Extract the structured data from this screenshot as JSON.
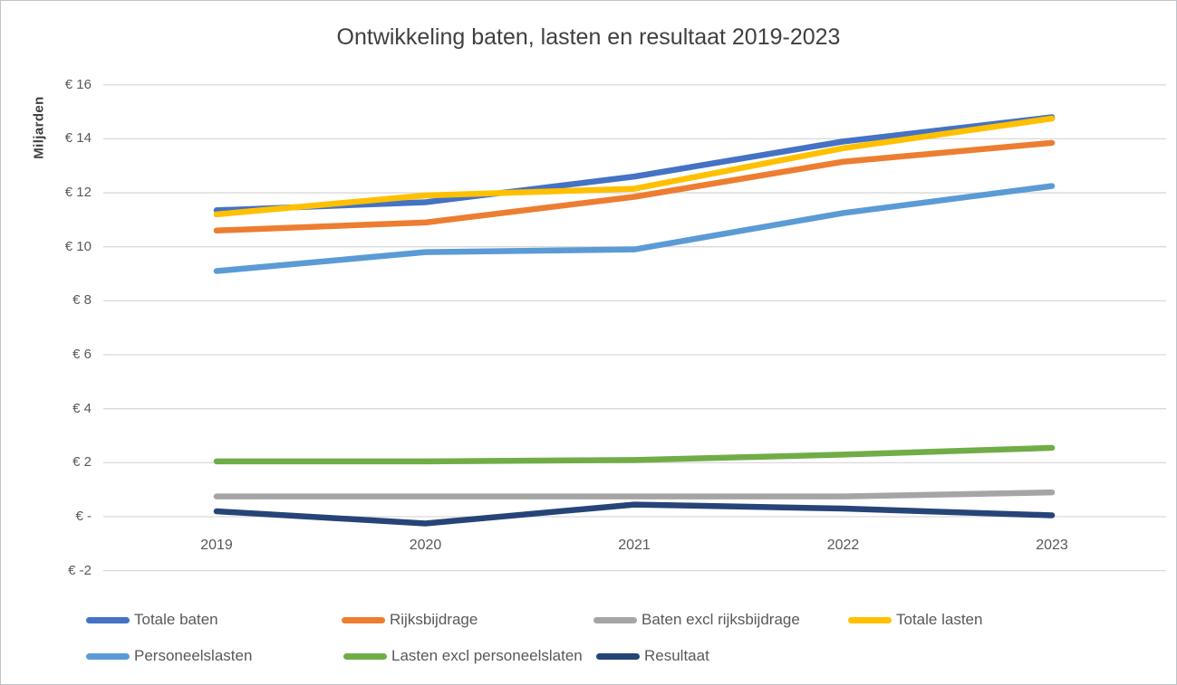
{
  "chart_data": {
    "type": "line",
    "title": "Ontwikkeling baten, lasten en resultaat 2019-2023",
    "y_axis_title": "Miljarden",
    "categories": [
      "2019",
      "2020",
      "2021",
      "2022",
      "2023"
    ],
    "series": [
      {
        "name": "Totale baten",
        "color": "#4472C4",
        "values": [
          11.35,
          11.65,
          12.6,
          13.9,
          14.8
        ]
      },
      {
        "name": "Rijksbijdrage",
        "color": "#ED7D31",
        "values": [
          10.6,
          10.9,
          11.85,
          13.15,
          13.85
        ]
      },
      {
        "name": "Baten excl rijksbijdrage",
        "color": "#A5A5A5",
        "values": [
          0.75,
          0.75,
          0.75,
          0.75,
          0.9
        ]
      },
      {
        "name": "Totale lasten",
        "color": "#FFC000",
        "values": [
          11.2,
          11.9,
          12.15,
          13.65,
          14.75
        ]
      },
      {
        "name": "Personeelslasten",
        "color": "#5B9BD5",
        "values": [
          9.1,
          9.8,
          9.9,
          11.25,
          12.25
        ]
      },
      {
        "name": "Lasten excl personeelslaten",
        "color": "#70AD47",
        "values": [
          2.05,
          2.05,
          2.1,
          2.3,
          2.55
        ]
      },
      {
        "name": "Resultaat",
        "color": "#264478",
        "values": [
          0.2,
          -0.25,
          0.45,
          0.3,
          0.05
        ]
      }
    ],
    "y_ticks": [
      {
        "value": 16,
        "label": "€ 16"
      },
      {
        "value": 14,
        "label": "€ 14"
      },
      {
        "value": 12,
        "label": "€ 12"
      },
      {
        "value": 10,
        "label": "€ 10"
      },
      {
        "value": 8,
        "label": "€ 8"
      },
      {
        "value": 6,
        "label": "€ 6"
      },
      {
        "value": 4,
        "label": "€ 4"
      },
      {
        "value": 2,
        "label": "€ 2"
      },
      {
        "value": 0,
        "label": "€ -"
      },
      {
        "value": -2,
        "label": "€ -2"
      }
    ],
    "ylim": [
      -2,
      16
    ],
    "grid": true,
    "gridline_color": "#D9D9D9",
    "legend_position": "bottom",
    "legend_rows": [
      [
        "Totale baten",
        "Rijksbijdrage",
        "Baten excl rijksbijdrage",
        "Totale lasten"
      ],
      [
        "Personeelslasten",
        "Lasten excl personeelslaten",
        "Resultaat"
      ]
    ],
    "title_color": "#404040",
    "axis_text_color": "#595959"
  }
}
